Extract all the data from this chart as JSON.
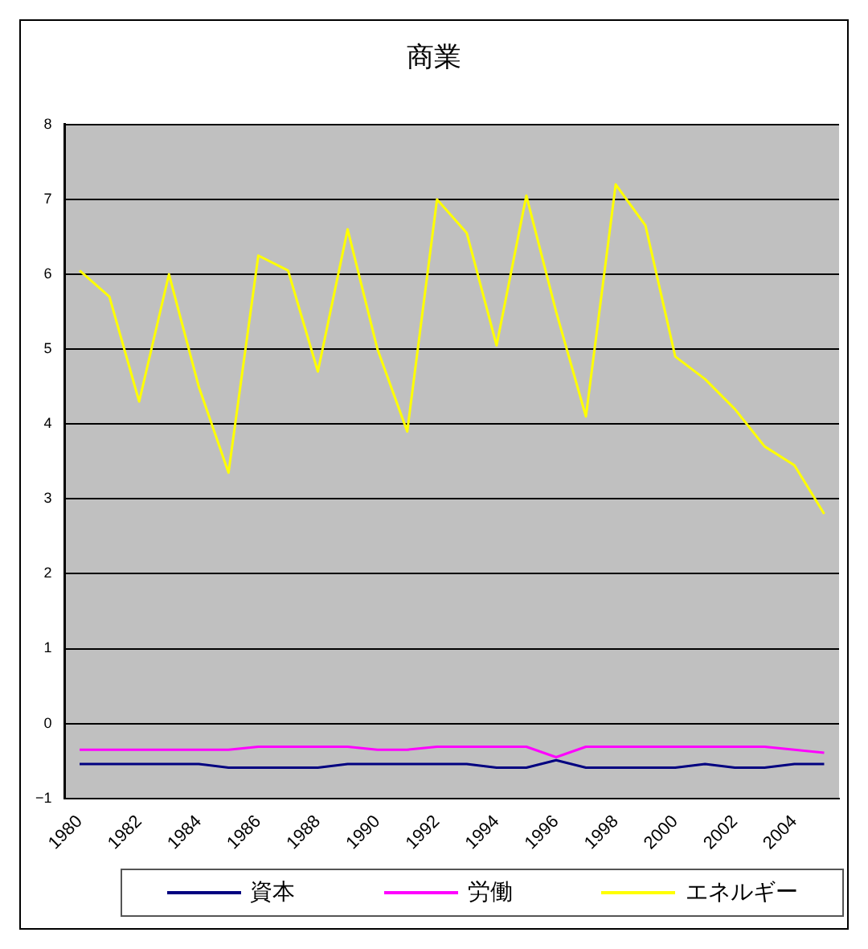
{
  "chart_data": {
    "type": "line",
    "title": "商業",
    "categories": [
      "1980",
      null,
      "1982",
      null,
      "1984",
      null,
      "1986",
      null,
      "1988",
      null,
      "1990",
      null,
      "1992",
      null,
      "1994",
      null,
      "1996",
      null,
      "1998",
      null,
      "2000",
      null,
      "2002",
      null,
      "2004",
      null
    ],
    "series": [
      {
        "name": "資本",
        "color": "#000080",
        "values": [
          -0.54,
          -0.54,
          -0.54,
          -0.54,
          -0.54,
          -0.59,
          -0.59,
          -0.59,
          -0.59,
          -0.54,
          -0.54,
          -0.54,
          -0.54,
          -0.54,
          -0.59,
          -0.59,
          -0.49,
          -0.59,
          -0.59,
          -0.59,
          -0.59,
          -0.54,
          -0.59,
          -0.59,
          -0.54,
          -0.54
        ]
      },
      {
        "name": "労働",
        "color": "#ff00ff",
        "values": [
          -0.35,
          -0.35,
          -0.35,
          -0.35,
          -0.35,
          -0.35,
          -0.31,
          -0.31,
          -0.31,
          -0.31,
          -0.35,
          -0.35,
          -0.31,
          -0.31,
          -0.31,
          -0.31,
          -0.45,
          -0.31,
          -0.31,
          -0.31,
          -0.31,
          -0.31,
          -0.31,
          -0.31,
          -0.35,
          -0.39
        ]
      },
      {
        "name": "エネルギー",
        "color": "#ffff00",
        "values": [
          6.05,
          5.7,
          4.3,
          6.0,
          4.5,
          3.35,
          6.25,
          6.05,
          4.7,
          6.6,
          5.0,
          3.9,
          7.0,
          6.55,
          5.05,
          7.05,
          5.5,
          4.1,
          7.2,
          6.65,
          4.9,
          4.6,
          4.2,
          3.7,
          3.45,
          2.8
        ]
      }
    ],
    "ylim": [
      -1,
      8
    ],
    "yticks": [
      -1,
      0,
      1,
      2,
      3,
      4,
      5,
      6,
      7,
      8
    ],
    "grid": "y",
    "legend": "bottom",
    "marker": "none",
    "line_style": "solid"
  }
}
